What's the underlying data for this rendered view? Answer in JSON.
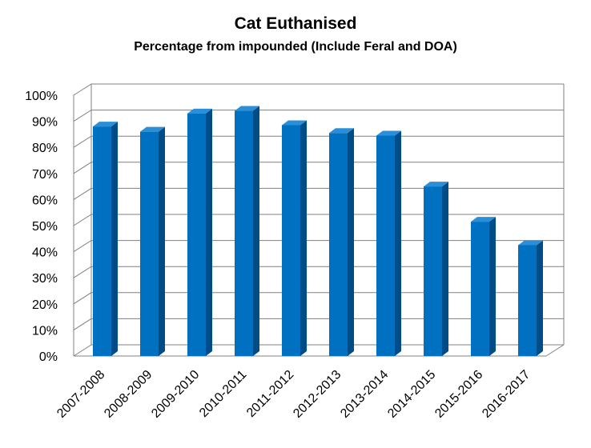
{
  "chart_data": {
    "type": "bar",
    "title": "Cat Euthanised",
    "subtitle": "Percentage from impounded (Include Feral and DOA)",
    "categories": [
      "2007-2008",
      "2008-2009",
      "2009-2010",
      "2010-2011",
      "2011-2012",
      "2012-2013",
      "2013-2014",
      "2014-2015",
      "2015-2016",
      "2016-2017"
    ],
    "values": [
      88,
      86,
      93,
      94,
      88.5,
      85.5,
      84.5,
      65,
      51.5,
      42.5
    ],
    "ylim": [
      0,
      100
    ],
    "y_ticks": [
      "0%",
      "10%",
      "20%",
      "30%",
      "40%",
      "50%",
      "60%",
      "70%",
      "80%",
      "90%",
      "100%"
    ],
    "grid": true,
    "legend": "none",
    "three_d": true,
    "colors": {
      "bar_front": "#0070c0",
      "bar_side": "#004c86",
      "bar_top": "#2a8fd8",
      "grid": "#808080"
    }
  }
}
